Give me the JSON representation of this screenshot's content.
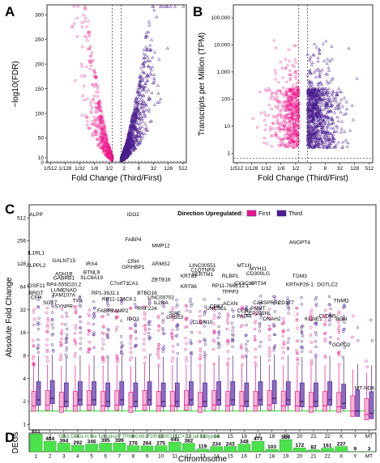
{
  "colors": {
    "first": "#f0158a",
    "third": "#4b1d8f",
    "green": "#4be34b",
    "gridline": "#666666"
  },
  "panels": {
    "A": {
      "letter": "A"
    },
    "B": {
      "letter": "B"
    },
    "C": {
      "letter": "C"
    },
    "D": {
      "letter": "D"
    }
  },
  "chart_data": [
    {
      "panel": "A",
      "type": "scatter",
      "xlabel": "Fold Change (Third/First)",
      "ylabel": "−log10(FDR)",
      "x_ticks": [
        "1/512",
        "1/128",
        "1/32",
        "1/8",
        "1/2",
        "2",
        "8",
        "32",
        "128",
        "512"
      ],
      "y_ticks": [
        300,
        250,
        200,
        150,
        100,
        50,
        10,
        0
      ],
      "ylim": [
        0,
        320
      ],
      "threshold_lines": {
        "x": [
          "1/1.5",
          "1.5"
        ],
        "y": 3
      }
    },
    {
      "panel": "B",
      "type": "scatter",
      "xlabel": "Fold Change (Third/First)",
      "ylabel": "Transcripts per Million (TPM)",
      "x_ticks": [
        "1/512",
        "1/128",
        "1/32",
        "1/8",
        "1/2",
        "2",
        "8",
        "32",
        "128",
        "512"
      ],
      "y_ticks": [
        "100,000",
        "10,000",
        "1,000",
        "100",
        "10",
        "1"
      ],
      "y_scale": "log",
      "threshold_lines": {
        "x": [
          "1/1.5",
          "1.5"
        ],
        "y": 0.66
      }
    },
    {
      "panel": "C",
      "type": "box",
      "ylabel": "Absolute Fold Change",
      "y_scale": "log2",
      "y_ticks": [
        512,
        256,
        128,
        64,
        32,
        16,
        8,
        4,
        2,
        1
      ],
      "legend": {
        "title": "Direction Upregulated:",
        "entries": [
          "First",
          "Third"
        ],
        "placement": "top-right"
      },
      "categories": [
        "1",
        "2",
        "3",
        "4",
        "5",
        "6",
        "7",
        "8",
        "9",
        "10",
        "11",
        "12",
        "13",
        "14",
        "15",
        "16",
        "17",
        "18",
        "19",
        "20",
        "21",
        "22",
        "X",
        "Y",
        "MT"
      ],
      "series": [
        {
          "name": "First",
          "medians": [
            1.75,
            1.8,
            1.7,
            1.75,
            1.8,
            1.75,
            1.8,
            1.7,
            1.8,
            1.75,
            1.75,
            1.8,
            1.7,
            1.8,
            1.75,
            1.75,
            1.75,
            1.8,
            1.75,
            1.75,
            1.7,
            1.75,
            1.7,
            1.5,
            1.35
          ]
        },
        {
          "name": "Third",
          "medians": [
            2.1,
            2.2,
            2.0,
            2.1,
            2.1,
            2.0,
            2.1,
            2.0,
            2.1,
            2.0,
            2.0,
            2.1,
            2.0,
            2.1,
            2.1,
            2.0,
            2.1,
            2.2,
            2.1,
            2.0,
            2.0,
            2.1,
            1.9,
            1.5,
            1.4
          ]
        }
      ],
      "gene_labels": [
        {
          "text": "ALPP",
          "x": "1",
          "y": 512,
          "color": "third"
        },
        {
          "text": "IL1RL1",
          "x": "1",
          "y": 160,
          "color": "third"
        },
        {
          "text": "ALPPL2",
          "x": "1",
          "y": 110,
          "color": "third"
        },
        {
          "text": "IGSF21",
          "x": "1",
          "y": 60,
          "color": "third"
        },
        {
          "text": "BRDT",
          "x": "1",
          "y": 48,
          "color": "first"
        },
        {
          "text": "CFH",
          "x": "1",
          "y": 42,
          "color": "third"
        },
        {
          "text": "SOX7",
          "x": "2",
          "y": 36,
          "color": "third"
        },
        {
          "text": "SYNPR",
          "x": "3",
          "y": 32,
          "color": "third"
        },
        {
          "text": "GALNT15",
          "x": "3",
          "y": 128,
          "color": "third"
        },
        {
          "text": "ADH1B",
          "x": "3",
          "y": 85,
          "color": "third"
        },
        {
          "text": "GABRB1",
          "x": "3",
          "y": 75,
          "color": "third"
        },
        {
          "text": "RP4-555D20.2",
          "x": "3",
          "y": 62,
          "color": "third"
        },
        {
          "text": "LUMENAD",
          "x": "3",
          "y": 52,
          "color": "third"
        },
        {
          "text": "FAM107A",
          "x": "3",
          "y": 45,
          "color": "third"
        },
        {
          "text": "TXK",
          "x": "4",
          "y": 38,
          "color": "third"
        },
        {
          "text": "IRX4",
          "x": "5",
          "y": 115,
          "color": "first"
        },
        {
          "text": "BTNL9",
          "x": "5",
          "y": 90,
          "color": "third"
        },
        {
          "text": "SLC6A19",
          "x": "5",
          "y": 76,
          "color": "first"
        },
        {
          "text": "RP1-39J2.1",
          "x": "6",
          "y": 48,
          "color": "third"
        },
        {
          "text": "FABP7",
          "x": "6",
          "y": 28,
          "color": "first"
        },
        {
          "text": "C7orf71",
          "x": "7",
          "y": 64,
          "color": "first"
        },
        {
          "text": "RP11-124C6.1",
          "x": "7",
          "y": 40,
          "color": "third"
        },
        {
          "text": "RAMP2",
          "x": "7",
          "y": 28,
          "color": "third"
        },
        {
          "text": "IDO1",
          "x": "8",
          "y": 22,
          "color": "third"
        },
        {
          "text": "IDO2",
          "x": "8",
          "y": 512,
          "color": "third"
        },
        {
          "text": "FABP4",
          "x": "8",
          "y": 240,
          "color": "third"
        },
        {
          "text": "CRH",
          "x": "8",
          "y": 125,
          "color": "third"
        },
        {
          "text": "GPIHBP1",
          "x": "8",
          "y": 105,
          "color": "third"
        },
        {
          "text": "CA1",
          "x": "8",
          "y": 64,
          "color": "third"
        },
        {
          "text": "BTBD16",
          "x": "9",
          "y": 48,
          "color": "third"
        },
        {
          "text": "RNF224",
          "x": "9",
          "y": 30,
          "color": "third"
        },
        {
          "text": "ARMS2",
          "x": "10",
          "y": 115,
          "color": "third"
        },
        {
          "text": "ZBTB16",
          "x": "10",
          "y": 72,
          "color": "third"
        },
        {
          "text": "MMP12",
          "x": "10",
          "y": 200,
          "color": "first"
        },
        {
          "text": "LINC00702",
          "x": "10",
          "y": 42,
          "color": "third"
        },
        {
          "text": "IL2RA",
          "x": "10",
          "y": 36,
          "color": "third"
        },
        {
          "text": "KRT81",
          "x": "12",
          "y": 80,
          "color": "third"
        },
        {
          "text": "KRT86",
          "x": "12",
          "y": 58,
          "color": "third"
        },
        {
          "text": "SIAE",
          "x": "11",
          "y": 26,
          "color": "first"
        },
        {
          "text": "GRB10",
          "x": "11",
          "y": 23,
          "color": "first"
        },
        {
          "text": "CLDN10",
          "x": "13",
          "y": 20,
          "color": "first"
        },
        {
          "text": "LINC00551",
          "x": "13",
          "y": 110,
          "color": "third"
        },
        {
          "text": "C1QTNF9",
          "x": "13",
          "y": 96,
          "color": "third"
        },
        {
          "text": "SERTM1",
          "x": "13",
          "y": 84,
          "color": "third"
        },
        {
          "text": "CD52",
          "x": "14",
          "y": 32,
          "color": "first"
        },
        {
          "text": "MT1H",
          "x": "16",
          "y": 110,
          "color": "first"
        },
        {
          "text": "RLBP1",
          "x": "15",
          "y": 80,
          "color": "first"
        },
        {
          "text": "RP11-766E12.1",
          "x": "15",
          "y": 60,
          "color": "third"
        },
        {
          "text": "TPPP3",
          "x": "15",
          "y": 50,
          "color": "third"
        },
        {
          "text": "ACAN",
          "x": "15",
          "y": 35,
          "color": "first"
        },
        {
          "text": "UNC5CL",
          "x": "14",
          "y": 30,
          "color": "first"
        },
        {
          "text": "CCR7",
          "x": "16",
          "y": 28,
          "color": "first"
        },
        {
          "text": "PADI4",
          "x": "16",
          "y": 24,
          "color": "first"
        },
        {
          "text": "MYH11",
          "x": "17",
          "y": 100,
          "color": "third"
        },
        {
          "text": "CD300LG",
          "x": "17",
          "y": 86,
          "color": "third"
        },
        {
          "text": "CX3CL1",
          "x": "16",
          "y": 64,
          "color": "third"
        },
        {
          "text": "KRT34",
          "x": "17",
          "y": 64,
          "color": "third"
        },
        {
          "text": "CA4",
          "x": "17",
          "y": 36,
          "color": "third"
        },
        {
          "text": "SPRR2",
          "x": "18",
          "y": 36,
          "color": "first"
        },
        {
          "text": "PNMT",
          "x": "17",
          "y": 30,
          "color": "third"
        },
        {
          "text": "CD177",
          "x": "19",
          "y": 36,
          "color": "third"
        },
        {
          "text": "CEP295NL",
          "x": "17",
          "y": 26,
          "color": "third"
        },
        {
          "text": "DNAH2",
          "x": "18",
          "y": 22,
          "color": "third"
        },
        {
          "text": "ANGPT4",
          "x": "20",
          "y": 220,
          "color": "first"
        },
        {
          "text": "TGM3",
          "x": "20",
          "y": 80,
          "color": "third"
        },
        {
          "text": "KRTAP26-1",
          "x": "20",
          "y": 62,
          "color": "third"
        },
        {
          "text": "DGTLC2",
          "x": "22",
          "y": 62,
          "color": "third"
        },
        {
          "text": "TNMD",
          "x": "X",
          "y": 38,
          "color": "third"
        },
        {
          "text": "KCNE1",
          "x": "21",
          "y": 22,
          "color": "third"
        },
        {
          "text": "CLDN5",
          "x": "22",
          "y": 24,
          "color": "third"
        },
        {
          "text": "BGN",
          "x": "X",
          "y": 22,
          "color": "third"
        },
        {
          "text": "GDPD2",
          "x": "X",
          "y": 10,
          "color": "first"
        },
        {
          "text": "MT-ND6",
          "x": "MT",
          "y": 2.7,
          "color": "first"
        }
      ]
    },
    {
      "panel": "D",
      "type": "bar",
      "ylabel": "DEGs",
      "xlabel": "Chromosome",
      "annotation": "Strict DEGs in the full cohort: TPM>0.66, FDR<0.001, FC>1.5 (all biotypes)",
      "categories": [
        "1",
        "2",
        "3",
        "4",
        "5",
        "6",
        "7",
        "8",
        "9",
        "10",
        "11",
        "12",
        "13",
        "14",
        "15",
        "16",
        "17",
        "18",
        "19",
        "20",
        "21",
        "22",
        "X",
        "Y",
        "MT"
      ],
      "values": [
        811,
        484,
        394,
        292,
        346,
        395,
        399,
        276,
        264,
        275,
        445,
        382,
        119,
        234,
        243,
        348,
        473,
        103,
        559,
        172,
        82,
        161,
        237,
        9,
        3
      ],
      "ylim": [
        0,
        860
      ]
    }
  ]
}
